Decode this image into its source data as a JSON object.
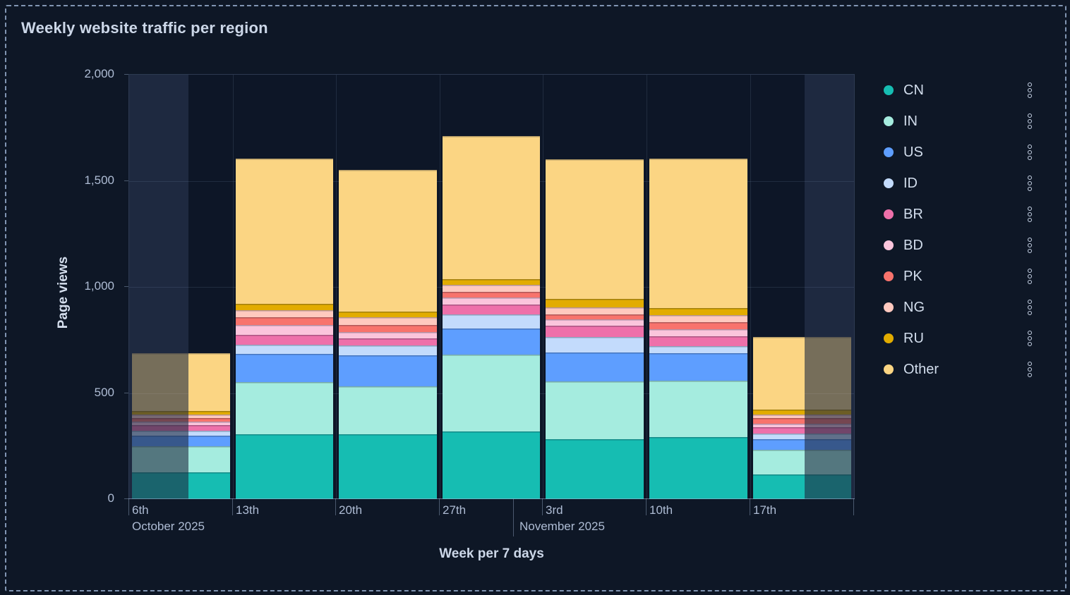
{
  "panel": {
    "title": "Weekly website traffic per region"
  },
  "y_axis": {
    "title": "Page views",
    "ticks": [
      {
        "label": "0",
        "value": 0
      },
      {
        "label": "500",
        "value": 500
      },
      {
        "label": "1,000",
        "value": 1000
      },
      {
        "label": "1,500",
        "value": 1500
      },
      {
        "label": "2,000",
        "value": 2000
      }
    ]
  },
  "x_axis": {
    "title": "Week per 7 days",
    "tick_labels": [
      "6th",
      "13th",
      "20th",
      "27th",
      "3rd",
      "10th",
      "17th"
    ],
    "month_labels": [
      {
        "text": "October 2025",
        "anchor_tick": 0
      },
      {
        "text": "November 2025",
        "anchor_tick": 4
      }
    ]
  },
  "legend": {
    "items": [
      {
        "label": "CN",
        "color": "#16bdb2"
      },
      {
        "label": "IN",
        "color": "#a5ecdf"
      },
      {
        "label": "US",
        "color": "#5e9eff"
      },
      {
        "label": "ID",
        "color": "#c3dbfc"
      },
      {
        "label": "BR",
        "color": "#ee70aa"
      },
      {
        "label": "BD",
        "color": "#fbc5dc"
      },
      {
        "label": "PK",
        "color": "#f8736c"
      },
      {
        "label": "NG",
        "color": "#ffc9bf"
      },
      {
        "label": "RU",
        "color": "#e2a c00"
      }
    ]
  },
  "chart_data": {
    "type": "bar",
    "stacked": true,
    "title": "Weekly website traffic per region",
    "xlabel": "Week per 7 days",
    "ylabel": "Page views",
    "ylim": [
      0,
      2000
    ],
    "grid": true,
    "legend_position": "right",
    "categories": [
      "6th Oct 2025",
      "13th Oct 2025",
      "20th Oct 2025",
      "27th Oct 2025",
      "3rd Nov 2025",
      "10th Nov 2025",
      "17th Nov 2025"
    ],
    "series": [
      {
        "name": "CN",
        "color": "#16bdb2",
        "values": [
          126,
          306,
          306,
          319,
          282,
          292,
          116
        ]
      },
      {
        "name": "IN",
        "color": "#a5ecdf",
        "values": [
          123,
          246,
          226,
          362,
          272,
          266,
          116
        ]
      },
      {
        "name": "US",
        "color": "#5e9eff",
        "values": [
          50,
          133,
          146,
          123,
          136,
          130,
          50
        ]
      },
      {
        "name": "ID",
        "color": "#c3dbfc",
        "values": [
          23,
          43,
          47,
          66,
          73,
          33,
          27
        ]
      },
      {
        "name": "BR",
        "color": "#ee70aa",
        "values": [
          27,
          47,
          33,
          47,
          53,
          47,
          30
        ]
      },
      {
        "name": "BD",
        "color": "#fbc5dc",
        "values": [
          17,
          47,
          30,
          33,
          33,
          33,
          17
        ]
      },
      {
        "name": "PK",
        "color": "#f8736c",
        "values": [
          17,
          37,
          33,
          27,
          23,
          33,
          27
        ]
      },
      {
        "name": "NG",
        "color": "#ffc9bf",
        "values": [
          17,
          30,
          37,
          33,
          33,
          33,
          17
        ]
      },
      {
        "name": "RU",
        "color": "#e2ac00",
        "values": [
          17,
          33,
          27,
          27,
          40,
          33,
          23
        ]
      },
      {
        "name": "Other",
        "color": "#fbd583",
        "values": [
          272,
          684,
          668,
          674,
          658,
          704,
          342
        ]
      }
    ],
    "totals": [
      689,
      1606,
      1553,
      1711,
      1603,
      1604,
      765
    ],
    "out_of_range_dim_regions_fraction": [
      [
        0,
        0.0818
      ],
      [
        0.9319,
        1.0
      ]
    ]
  }
}
